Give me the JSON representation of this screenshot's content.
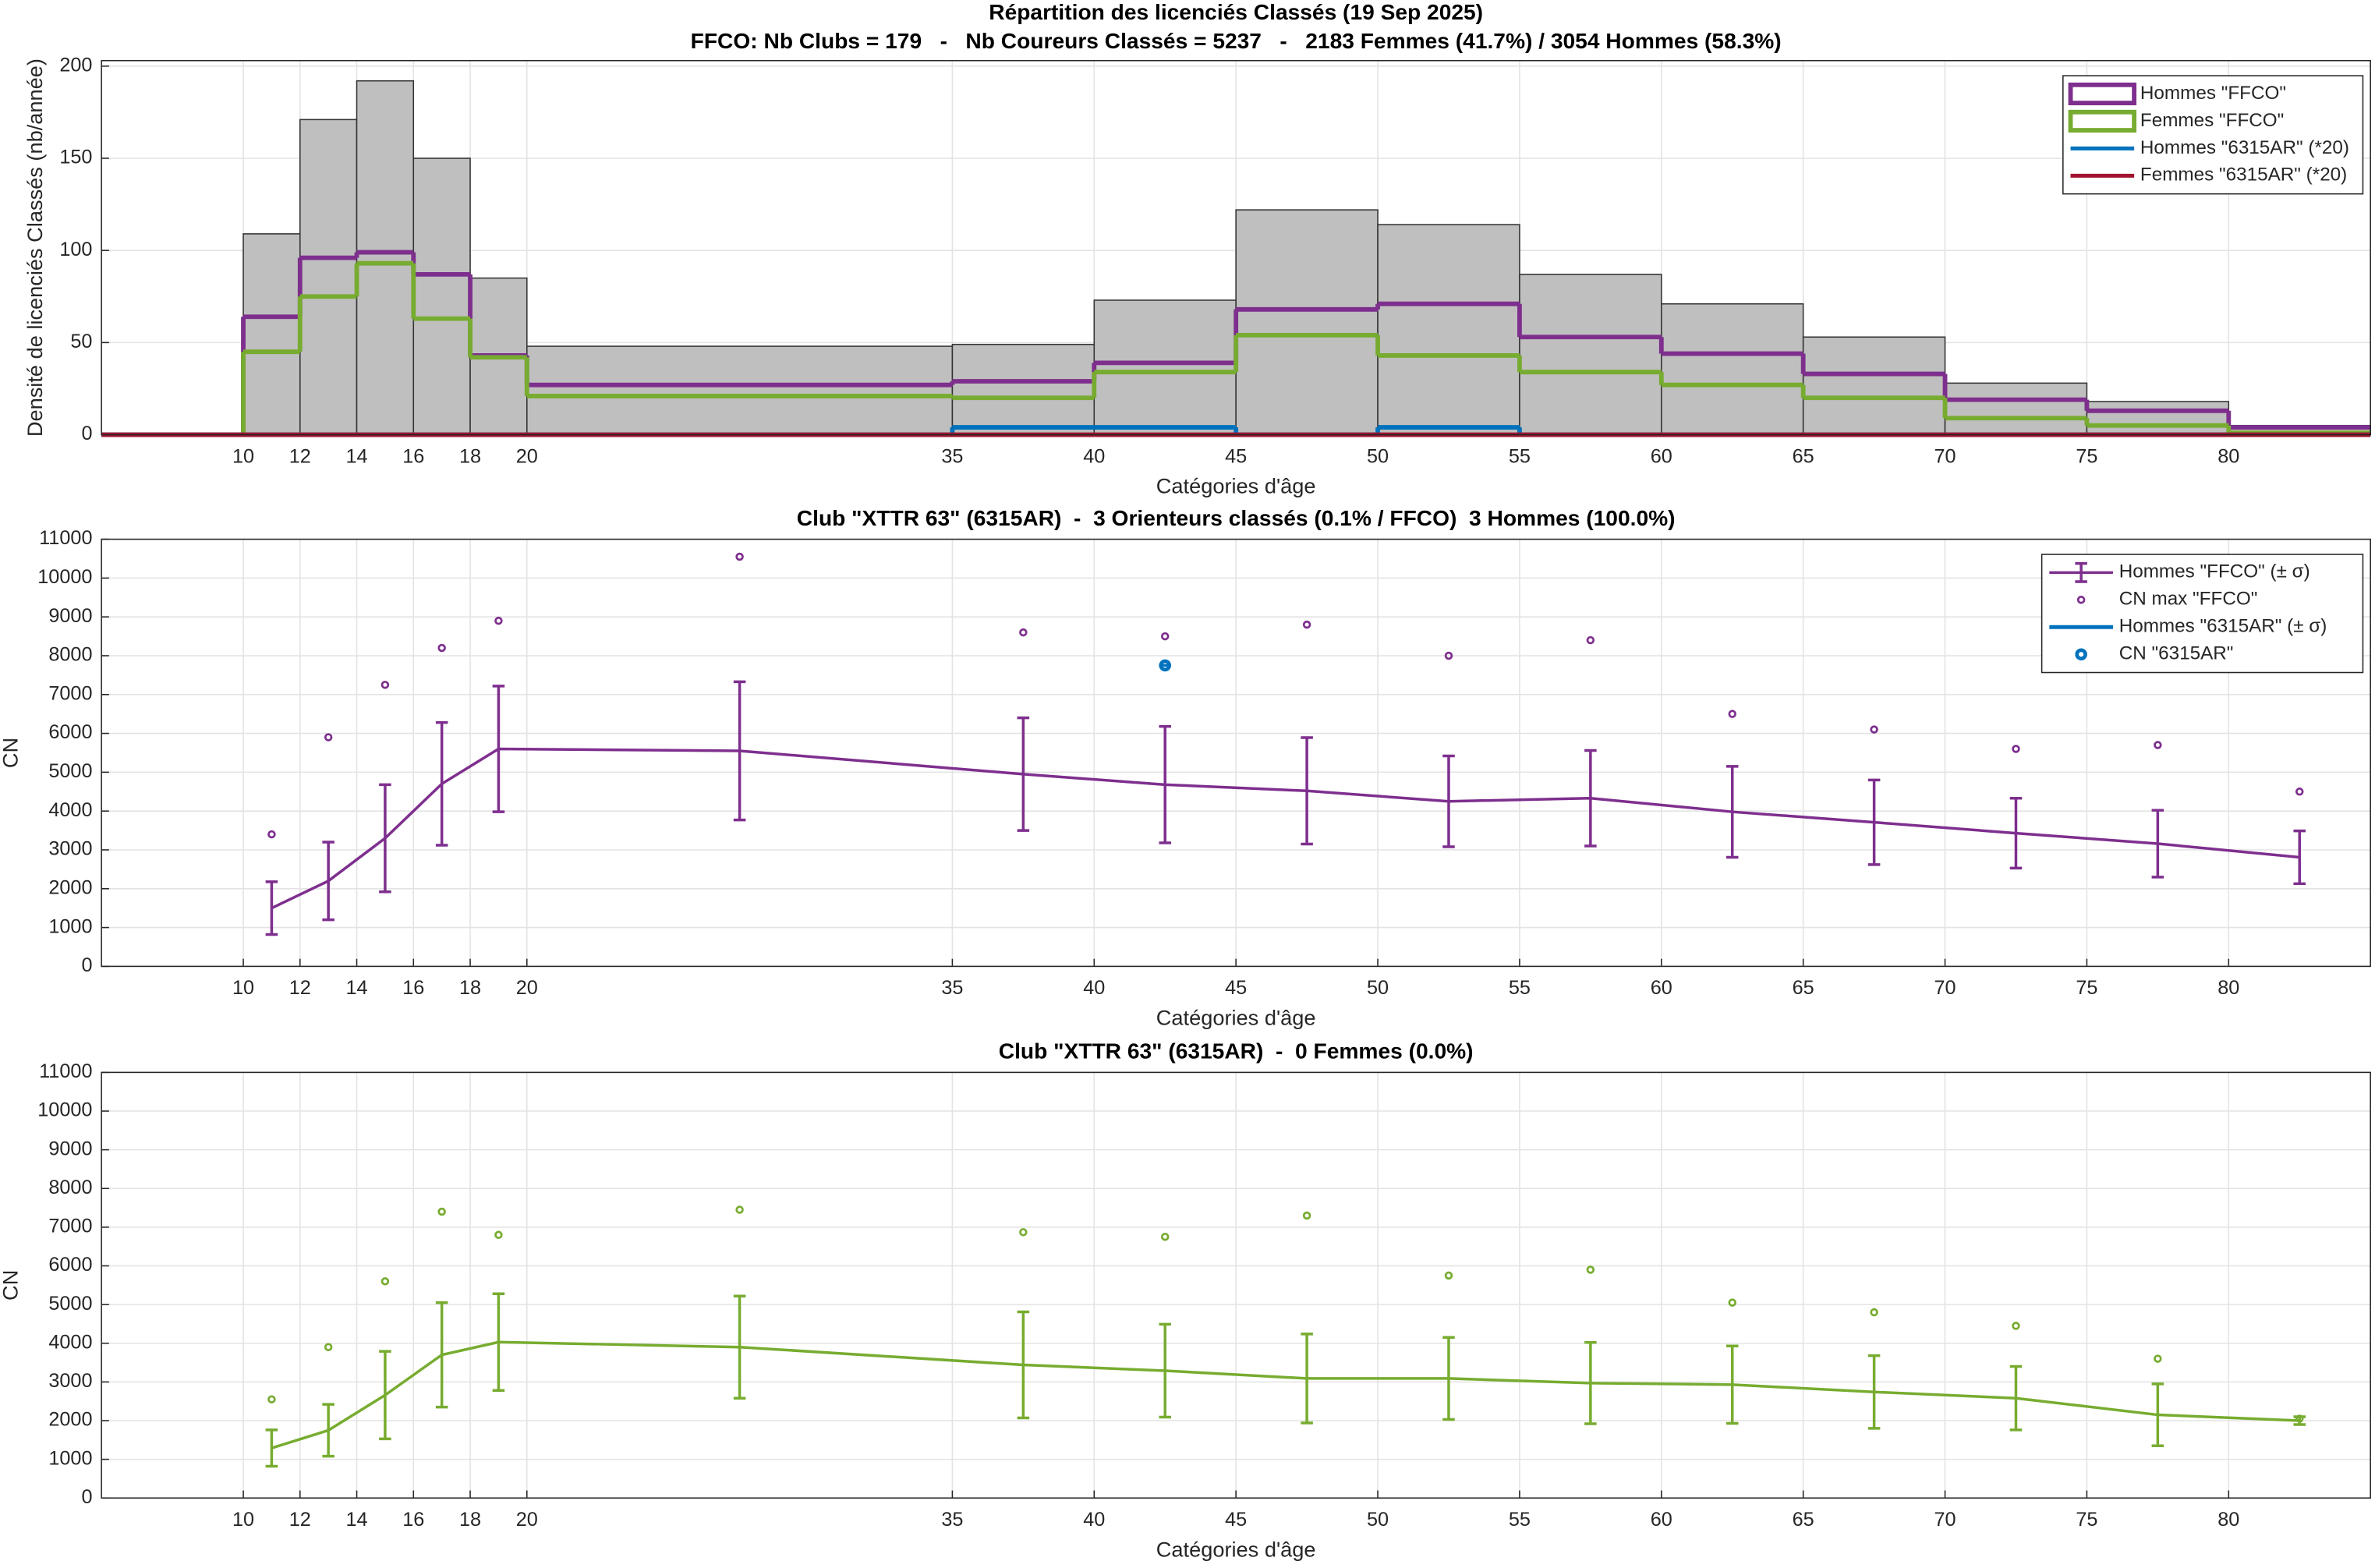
{
  "chart_data": [
    {
      "type": "histogram",
      "title": "Répartition des licenciés Classés (19 Sep 2025)",
      "subtitle": "FFCO: Nb Clubs = 179   -   Nb Coureurs Classés = 5237   -   2183 Femmes (41.7%) / 3054 Hommes (58.3%)",
      "xlabel": "Catégories d'âge",
      "ylabel": "Densité de licenciés Classés (nb/année)",
      "bins": [
        5,
        10,
        12,
        14,
        16,
        18,
        20,
        35,
        40,
        45,
        50,
        55,
        60,
        65,
        70,
        75,
        80,
        85
      ],
      "values": [
        0,
        109,
        171,
        192,
        150,
        85,
        48,
        49,
        73,
        122,
        114,
        87,
        71,
        53,
        28,
        18,
        5
      ],
      "color": "#bfbfbf",
      "series": [
        {
          "name": "Hommes \"FFCO\"",
          "color": "#7e2f8e",
          "legend_icon": "box",
          "values": [
            0,
            64,
            96,
            99,
            87,
            43,
            27,
            29,
            39,
            68,
            71,
            53,
            44,
            33,
            19,
            13,
            4
          ]
        },
        {
          "name": "Femmes \"FFCO\"",
          "color": "#77ac30",
          "legend_icon": "box",
          "values": [
            0,
            45,
            75,
            93,
            63,
            42,
            21,
            20,
            34,
            54,
            43,
            34,
            27,
            20,
            9,
            5,
            1
          ]
        },
        {
          "name": "Hommes \"6315AR\" (*20)",
          "color": "#0072bd",
          "legend_icon": "line",
          "values": [
            0,
            0,
            0,
            0,
            0,
            0,
            0,
            4,
            4,
            0,
            4,
            0,
            0,
            0,
            0,
            0,
            0
          ]
        },
        {
          "name": "Femmes \"6315AR\" (*20)",
          "color": "#a2142f",
          "legend_icon": "line",
          "values": [
            0,
            0,
            0,
            0,
            0,
            0,
            0,
            0,
            0,
            0,
            0,
            0,
            0,
            0,
            0,
            0,
            0
          ]
        }
      ],
      "xlim": [
        5,
        85
      ],
      "ylim": [
        0,
        203
      ],
      "xticks": [
        10,
        12,
        14,
        16,
        18,
        20,
        35,
        40,
        45,
        50,
        55,
        60,
        65,
        70,
        75,
        80
      ],
      "yticks": [
        0,
        50,
        100,
        150,
        200
      ],
      "grid": true,
      "legend": "upper right"
    },
    {
      "type": "line",
      "title": "Club \"XTTR 63\" (6315AR)  -  3 Orienteurs classés (0.1% / FFCO)  3 Hommes (100.0%)",
      "xlabel": "Catégories d'âge",
      "ylabel": "CN",
      "x": [
        11,
        13,
        15,
        17,
        19,
        27.5,
        37.5,
        42.5,
        47.5,
        52.5,
        57.5,
        62.5,
        67.5,
        72.5,
        77.5,
        82.5
      ],
      "series": [
        {
          "name": "Hommes \"FFCO\" (± σ)",
          "color": "#7e2f8e",
          "legend_icon": "errorbar",
          "values": [
            1500,
            2200,
            3300,
            4700,
            5600,
            5550,
            4950,
            4680,
            4520,
            4250,
            4330,
            3980,
            3710,
            3430,
            3160,
            2810
          ],
          "errors": [
            680,
            1000,
            1380,
            1580,
            1620,
            1780,
            1450,
            1500,
            1370,
            1170,
            1230,
            1170,
            1090,
            900,
            860,
            680
          ]
        },
        {
          "name": "CN max \"FFCO\"",
          "color": "#7e2f8e",
          "marker": "circle",
          "values": [
            3400,
            5900,
            7250,
            8200,
            8900,
            10550,
            8600,
            8500,
            8800,
            8000,
            8400,
            6500,
            6100,
            5600,
            5700,
            4500
          ]
        },
        {
          "name": "Hommes \"6315AR\" (± σ)",
          "color": "#0072bd",
          "legend_icon": "line",
          "x": [
            42.5
          ],
          "values": [
            7750
          ],
          "errors": [
            0
          ]
        },
        {
          "name": "CN \"6315AR\"",
          "color": "#0072bd",
          "marker": "circle",
          "marker_size": "large",
          "x": [
            42.5
          ],
          "values": [
            7750
          ]
        }
      ],
      "xlim": [
        5,
        85
      ],
      "ylim": [
        0,
        11000
      ],
      "xticks": [
        10,
        12,
        14,
        16,
        18,
        20,
        35,
        40,
        45,
        50,
        55,
        60,
        65,
        70,
        75,
        80
      ],
      "yticks": [
        0,
        1000,
        2000,
        3000,
        4000,
        5000,
        6000,
        7000,
        8000,
        9000,
        10000,
        11000
      ],
      "grid": true,
      "legend": "upper right"
    },
    {
      "type": "line",
      "title": "Club \"XTTR 63\" (6315AR)  -  0 Femmes (0.0%)",
      "xlabel": "Catégories d'âge",
      "ylabel": "CN",
      "x": [
        11,
        13,
        15,
        17,
        19,
        27.5,
        37.5,
        42.5,
        47.5,
        52.5,
        57.5,
        62.5,
        67.5,
        72.5,
        77.5,
        82.5
      ],
      "series": [
        {
          "color": "#77ac30",
          "values": [
            1290,
            1750,
            2660,
            3700,
            4030,
            3900,
            3440,
            3290,
            3090,
            3090,
            2970,
            2930,
            2740,
            2580,
            2150,
            2000
          ],
          "errors": [
            470,
            670,
            1130,
            1350,
            1250,
            1320,
            1370,
            1200,
            1150,
            1060,
            1050,
            1000,
            940,
            820,
            800,
            100
          ]
        },
        {
          "color": "#77ac30",
          "marker": "circle",
          "values": [
            2550,
            3900,
            5600,
            7400,
            6800,
            7450,
            6870,
            6750,
            7300,
            5750,
            5900,
            5050,
            4800,
            4450,
            3600,
            2050
          ]
        }
      ],
      "xlim": [
        5,
        85
      ],
      "ylim": [
        0,
        11000
      ],
      "xticks": [
        10,
        12,
        14,
        16,
        18,
        20,
        35,
        40,
        45,
        50,
        55,
        60,
        65,
        70,
        75,
        80
      ],
      "yticks": [
        0,
        1000,
        2000,
        3000,
        4000,
        5000,
        6000,
        7000,
        8000,
        9000,
        10000,
        11000
      ],
      "grid": true
    }
  ]
}
